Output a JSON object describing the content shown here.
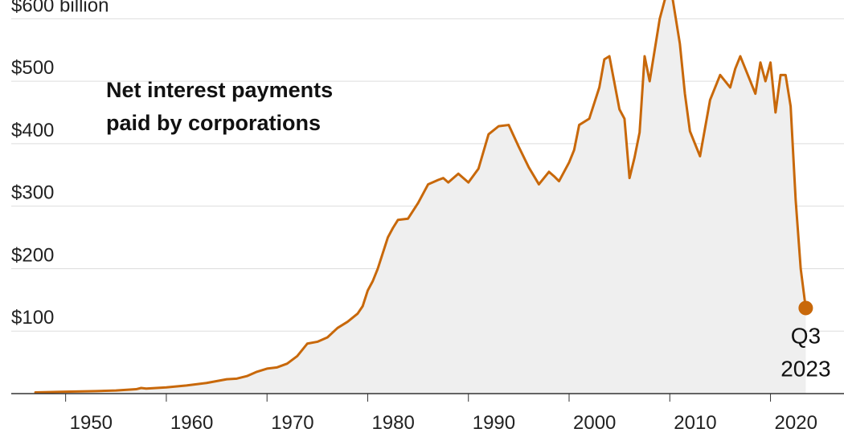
{
  "chart_data": {
    "type": "area",
    "title": "Net interest payments paid by corporations",
    "xlabel": "",
    "ylabel": "",
    "unit": "billion dollars",
    "x_ticks": [
      1950,
      1960,
      1970,
      1980,
      1990,
      2000,
      2010,
      2020
    ],
    "x_tick_labels": [
      "1950",
      "1960",
      "1970",
      "1980",
      "1990",
      "2000",
      "2010",
      "2020"
    ],
    "y_ticks": [
      0,
      100,
      200,
      300,
      400,
      500,
      600
    ],
    "y_tick_labels": [
      "",
      "$100",
      "$200",
      "$300",
      "$400",
      "$500",
      "$600 billion"
    ],
    "xlim": [
      1944.6,
      2027.3
    ],
    "ylim": [
      0,
      630
    ],
    "grid": true,
    "colors": {
      "line": "#c8680a",
      "area": "#efefef",
      "grid": "#dddddd",
      "axis": "#333333"
    },
    "annotation": {
      "x": 2023.5,
      "y": 137,
      "lines": [
        "Q3",
        "2023"
      ]
    },
    "series": [
      {
        "x": [
          1947,
          1950,
          1953,
          1955,
          1957,
          1957.5,
          1958,
          1960,
          1962,
          1964,
          1966,
          1967,
          1968,
          1969,
          1970,
          1971,
          1972,
          1973,
          1973.5,
          1974,
          1975,
          1976,
          1977,
          1977.5,
          1978,
          1979,
          1979.5,
          1980,
          1980.5,
          1981,
          1982,
          1982.5,
          1983,
          1984,
          1985,
          1986,
          1987,
          1987.5,
          1988,
          1989,
          1990,
          1991,
          1992,
          1993,
          1994,
          1995,
          1996,
          1997,
          1998,
          1998.5,
          1999,
          2000,
          2000.5,
          2001,
          2002,
          2003,
          2003.5,
          2004,
          2005,
          2005.5,
          2006,
          2006.5,
          2007,
          2007.5,
          2008,
          2009,
          2010,
          2011,
          2011.5,
          2012,
          2012.5,
          2013,
          2014,
          2015,
          2016,
          2016.5,
          2017,
          2018,
          2018.5,
          2019,
          2019.5,
          2020,
          2020.5,
          2021,
          2021.5,
          2022,
          2022.5,
          2023,
          2023.5
        ],
        "y": [
          2,
          3,
          4,
          5,
          7,
          9,
          8,
          10,
          13,
          17,
          23,
          24,
          28,
          35,
          40,
          42,
          48,
          60,
          70,
          80,
          83,
          90,
          105,
          110,
          115,
          128,
          140,
          165,
          180,
          200,
          250,
          265,
          278,
          280,
          305,
          335,
          342,
          345,
          338,
          352,
          338,
          360,
          415,
          428,
          430,
          395,
          362,
          335,
          355,
          348,
          340,
          370,
          390,
          430,
          440,
          490,
          535,
          540,
          455,
          440,
          345,
          378,
          418,
          540,
          500,
          600,
          660,
          560,
          480,
          420,
          400,
          380,
          470,
          510,
          490,
          520,
          540,
          500,
          480,
          530,
          500,
          530,
          450,
          510,
          510,
          460,
          310,
          200,
          137
        ]
      }
    ]
  }
}
